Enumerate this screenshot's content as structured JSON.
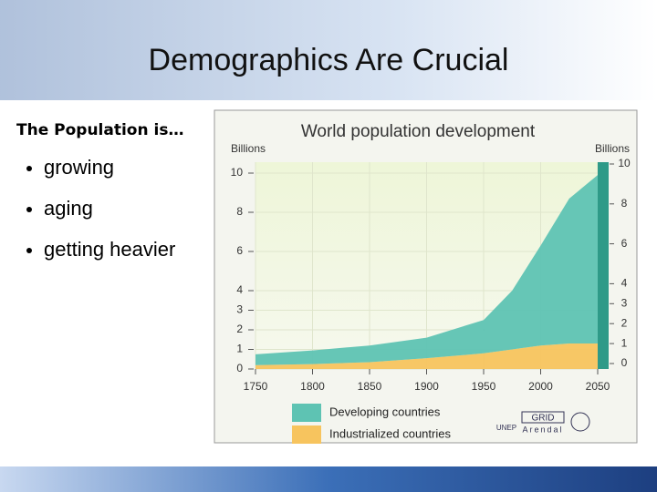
{
  "slide": {
    "title": "Demographics Are Crucial",
    "subtitle": "The Population is…",
    "bullets": [
      "growing",
      "aging",
      "getting heavier"
    ]
  },
  "chart_data": {
    "type": "stacked-area",
    "title": "World population development",
    "y_label": "Billions",
    "y2_label": "Billions",
    "x": [
      1750,
      1800,
      1850,
      1900,
      1950,
      1975,
      2000,
      2025,
      2050
    ],
    "xlim": [
      1750,
      2050
    ],
    "xticks": [
      1750,
      1800,
      1850,
      1900,
      1950,
      2000,
      2050
    ],
    "ylim": [
      0,
      10
    ],
    "yticks": [
      0,
      1,
      2,
      3,
      4,
      6,
      8,
      10
    ],
    "y2lim": [
      0,
      10
    ],
    "y2ticks": [
      0,
      1,
      2,
      3,
      4,
      6,
      8,
      10
    ],
    "grid": true,
    "series": [
      {
        "name": "Industrialized countries",
        "color": "#f7c45e",
        "values": [
          0.2,
          0.25,
          0.35,
          0.55,
          0.8,
          1.0,
          1.2,
          1.3,
          1.3
        ]
      },
      {
        "name": "Developing countries",
        "color": "#5ec3b3",
        "values": [
          0.55,
          0.7,
          0.85,
          1.05,
          1.7,
          3.0,
          5.1,
          7.4,
          8.6
        ]
      }
    ],
    "credits": [
      "UNEP",
      "GRID",
      "Arendal"
    ]
  }
}
